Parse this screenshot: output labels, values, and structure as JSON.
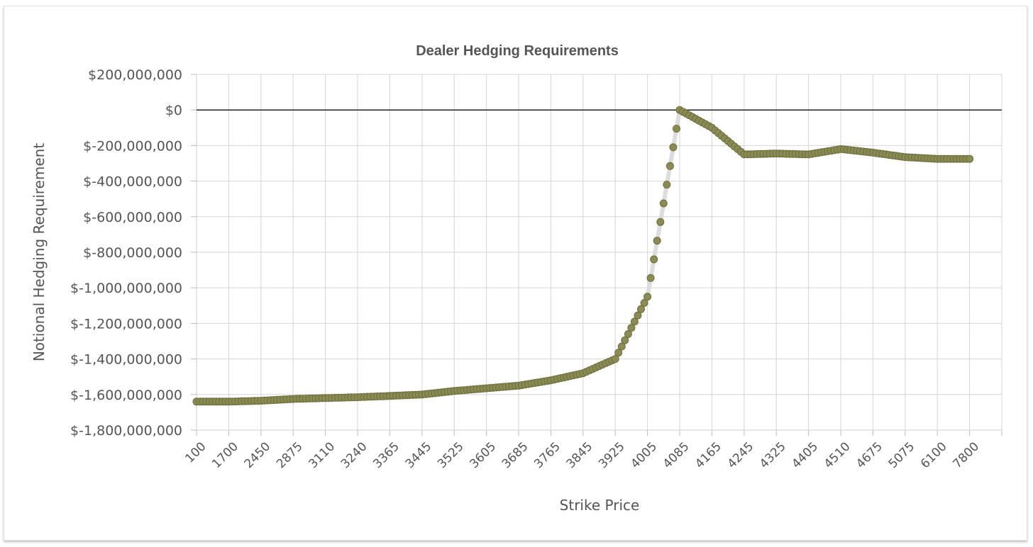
{
  "chart_data": {
    "type": "scatter",
    "title": "Dealer Hedging Requirements",
    "xlabel": "Strike Price",
    "ylabel": "Notional Hedging Requirement",
    "ylim": [
      -1800000000,
      200000000
    ],
    "yticks": [
      200000000,
      0,
      -200000000,
      -400000000,
      -600000000,
      -800000000,
      -1000000000,
      -1200000000,
      -1400000000,
      -1600000000,
      -1800000000
    ],
    "ytick_labels": [
      "$200,000,000",
      "$0",
      "$-200,000,000",
      "$-400,000,000",
      "$-600,000,000",
      "$-800,000,000",
      "$-1,000,000,000",
      "$-1,200,000,000",
      "$-1,400,000,000",
      "$-1,600,000,000",
      "$-1,800,000,000"
    ],
    "xtick_labels": [
      "100",
      "1700",
      "2450",
      "2875",
      "3110",
      "3240",
      "3365",
      "3445",
      "3525",
      "3605",
      "3685",
      "3765",
      "3845",
      "3925",
      "4005",
      "4085",
      "4165",
      "4245",
      "4325",
      "4405",
      "4510",
      "4675",
      "5075",
      "6100",
      "7800"
    ],
    "grid": true,
    "zero_line": true,
    "marker_color": "#8b8b55",
    "marker_edge_color": "#6e6e3c",
    "line_color": "#dddddd",
    "series": [
      {
        "anchor_positions": [
          0,
          1,
          2,
          3,
          4,
          5,
          6,
          7,
          8,
          9,
          10,
          11,
          12,
          13,
          14,
          15,
          16,
          17,
          18,
          19,
          20,
          21,
          22,
          23,
          24
        ],
        "anchor_values": [
          -1640000000,
          -1640000000,
          -1635000000,
          -1625000000,
          -1620000000,
          -1615000000,
          -1608000000,
          -1600000000,
          -1580000000,
          -1565000000,
          -1550000000,
          -1520000000,
          -1480000000,
          -1400000000,
          -1050000000,
          0,
          -100000000,
          -250000000,
          -245000000,
          -250000000,
          -220000000,
          -240000000,
          -265000000,
          -275000000,
          -275000000
        ],
        "x": [
          0.0,
          0.1,
          0.2,
          0.3,
          0.4,
          0.5,
          0.6,
          0.7,
          0.8,
          0.9,
          1.0,
          1.1,
          1.2,
          1.3,
          1.4,
          1.5,
          1.6,
          1.7,
          1.8,
          1.9,
          2.0,
          2.1,
          2.2,
          2.3,
          2.4,
          2.5,
          2.6,
          2.7,
          2.8,
          2.9,
          3.0,
          3.1,
          3.2,
          3.3,
          3.4,
          3.5,
          3.6,
          3.7,
          3.8,
          3.9,
          4.0,
          4.1,
          4.2,
          4.3,
          4.4,
          4.5,
          4.6,
          4.7,
          4.8,
          4.9,
          5.0,
          5.1,
          5.2,
          5.3,
          5.4,
          5.5,
          5.6,
          5.7,
          5.8,
          5.9,
          6.0,
          6.1,
          6.2,
          6.3,
          6.4,
          6.5,
          6.6,
          6.7,
          6.8,
          6.9,
          7.0,
          7.1,
          7.2,
          7.3,
          7.4,
          7.5,
          7.6,
          7.7,
          7.8,
          7.9,
          8.0,
          8.1,
          8.2,
          8.3,
          8.4,
          8.5,
          8.6,
          8.7,
          8.8,
          8.9,
          9.0,
          9.1,
          9.2,
          9.3,
          9.4,
          9.5,
          9.6,
          9.7,
          9.8,
          9.9,
          10.0,
          10.1,
          10.2,
          10.3,
          10.4,
          10.5,
          10.6,
          10.7,
          10.8,
          10.9,
          11.0,
          11.1,
          11.2,
          11.3,
          11.4,
          11.5,
          11.6,
          11.7,
          11.8,
          11.9,
          12.0,
          12.1,
          12.2,
          12.3,
          12.4,
          12.5,
          12.6,
          12.7,
          12.8,
          12.9,
          13.0,
          13.1,
          13.2,
          13.3,
          13.4,
          13.5,
          13.6,
          13.7,
          13.8,
          13.9,
          14.0,
          14.1,
          14.2,
          14.3,
          14.4,
          14.5,
          14.6,
          14.7,
          14.8,
          14.9,
          15.0,
          15.1,
          15.2,
          15.3,
          15.4,
          15.5,
          15.6,
          15.7,
          15.8,
          15.9,
          16.0,
          16.1,
          16.2,
          16.3,
          16.4,
          16.5,
          16.6,
          16.7,
          16.8,
          16.9,
          17.0,
          17.1,
          17.2,
          17.3,
          17.4,
          17.5,
          17.6,
          17.7,
          17.8,
          17.9,
          18.0,
          18.1,
          18.2,
          18.3,
          18.4,
          18.5,
          18.6,
          18.7,
          18.8,
          18.9,
          19.0,
          19.1,
          19.2,
          19.3,
          19.4,
          19.5,
          19.6,
          19.7,
          19.8,
          19.9,
          20.0,
          20.1,
          20.2,
          20.3,
          20.4,
          20.5,
          20.6,
          20.7,
          20.8,
          20.9,
          21.0,
          21.1,
          21.2,
          21.3,
          21.4,
          21.5,
          21.6,
          21.7,
          21.8,
          21.9,
          22.0,
          22.1,
          22.2,
          22.3,
          22.4,
          22.5,
          22.6,
          22.7,
          22.8,
          22.9,
          23.0,
          23.1,
          23.2,
          23.3,
          23.4,
          23.5,
          23.6,
          23.7,
          23.8,
          23.9,
          24.0
        ],
        "values": [
          -1640000000,
          -1640000000,
          -1640000000,
          -1640000000,
          -1640000000,
          -1640000000,
          -1640000000,
          -1640000000,
          -1640000000,
          -1640000000,
          -1640000000,
          -1639500000,
          -1639000000,
          -1638500000,
          -1638000000,
          -1637500000,
          -1637000000,
          -1636500000,
          -1636000000,
          -1635500000,
          -1635000000,
          -1634000000,
          -1633000000,
          -1632000000,
          -1631000000,
          -1630000000,
          -1629000000,
          -1628000000,
          -1627000000,
          -1626000000,
          -1625000000,
          -1624500000,
          -1624000000,
          -1623500000,
          -1623000000,
          -1622500000,
          -1622000000,
          -1621500000,
          -1621000000,
          -1620500000,
          -1620000000,
          -1619500000,
          -1619000000,
          -1618500000,
          -1618000000,
          -1617500000,
          -1617000000,
          -1616500000,
          -1616000000,
          -1615500000,
          -1615000000,
          -1614300000,
          -1613600000,
          -1612900000,
          -1612200000,
          -1611500000,
          -1610800000,
          -1610100000,
          -1609400000,
          -1608700000,
          -1608000000,
          -1607200000,
          -1606400000,
          -1605600000,
          -1604800000,
          -1604000000,
          -1603200000,
          -1602400000,
          -1601600000,
          -1600800000,
          -1600000000,
          -1598000000,
          -1596000000,
          -1594000000,
          -1592000000,
          -1590000000,
          -1588000000,
          -1586000000,
          -1584000000,
          -1582000000,
          -1580000000,
          -1578500000,
          -1577000000,
          -1575500000,
          -1574000000,
          -1572500000,
          -1571000000,
          -1569500000,
          -1568000000,
          -1566500000,
          -1565000000,
          -1563500000,
          -1562000000,
          -1560500000,
          -1559000000,
          -1557500000,
          -1556000000,
          -1554500000,
          -1553000000,
          -1551500000,
          -1550000000,
          -1547000000,
          -1544000000,
          -1541000000,
          -1538000000,
          -1535000000,
          -1532000000,
          -1529000000,
          -1526000000,
          -1523000000,
          -1520000000,
          -1516000000,
          -1512000000,
          -1508000000,
          -1504000000,
          -1500000000,
          -1496000000,
          -1492000000,
          -1488000000,
          -1484000000,
          -1480000000,
          -1472000000,
          -1464000000,
          -1456000000,
          -1448000000,
          -1440000000,
          -1432000000,
          -1424000000,
          -1416000000,
          -1408000000,
          -1400000000,
          -1365000000,
          -1330000000,
          -1295000000,
          -1260000000,
          -1225000000,
          -1190000000,
          -1155000000,
          -1120000000,
          -1085000000,
          -1050000000,
          -945000000,
          -840000000,
          -735000000,
          -630000000,
          -525000000,
          -420000000,
          -315000000,
          -210000000,
          -105000000,
          0,
          -10000000,
          -20000000,
          -30000000,
          -40000000,
          -50000000,
          -60000000,
          -70000000,
          -80000000,
          -90000000,
          -100000000,
          -115000000,
          -130000000,
          -145000000,
          -160000000,
          -175000000,
          -190000000,
          -205000000,
          -220000000,
          -235000000,
          -250000000,
          -249500000,
          -249000000,
          -248500000,
          -248000000,
          -247500000,
          -247000000,
          -246500000,
          -246000000,
          -245500000,
          -245000000,
          -245500000,
          -246000000,
          -246500000,
          -247000000,
          -247500000,
          -248000000,
          -248500000,
          -249000000,
          -249500000,
          -250000000,
          -247000000,
          -244000000,
          -241000000,
          -238000000,
          -235000000,
          -232000000,
          -229000000,
          -226000000,
          -223000000,
          -220000000,
          -222000000,
          -224000000,
          -226000000,
          -228000000,
          -230000000,
          -232000000,
          -234000000,
          -236000000,
          -238000000,
          -240000000,
          -242500000,
          -245000000,
          -247500000,
          -250000000,
          -252500000,
          -255000000,
          -257500000,
          -260000000,
          -262500000,
          -265000000,
          -266000000,
          -267000000,
          -268000000,
          -269000000,
          -270000000,
          -271000000,
          -272000000,
          -273000000,
          -274000000,
          -275000000,
          -275000000,
          -275000000,
          -275000000,
          -275000000,
          -275000000,
          -275000000,
          -275000000,
          -275000000,
          -275000000,
          -275000000
        ]
      }
    ]
  }
}
